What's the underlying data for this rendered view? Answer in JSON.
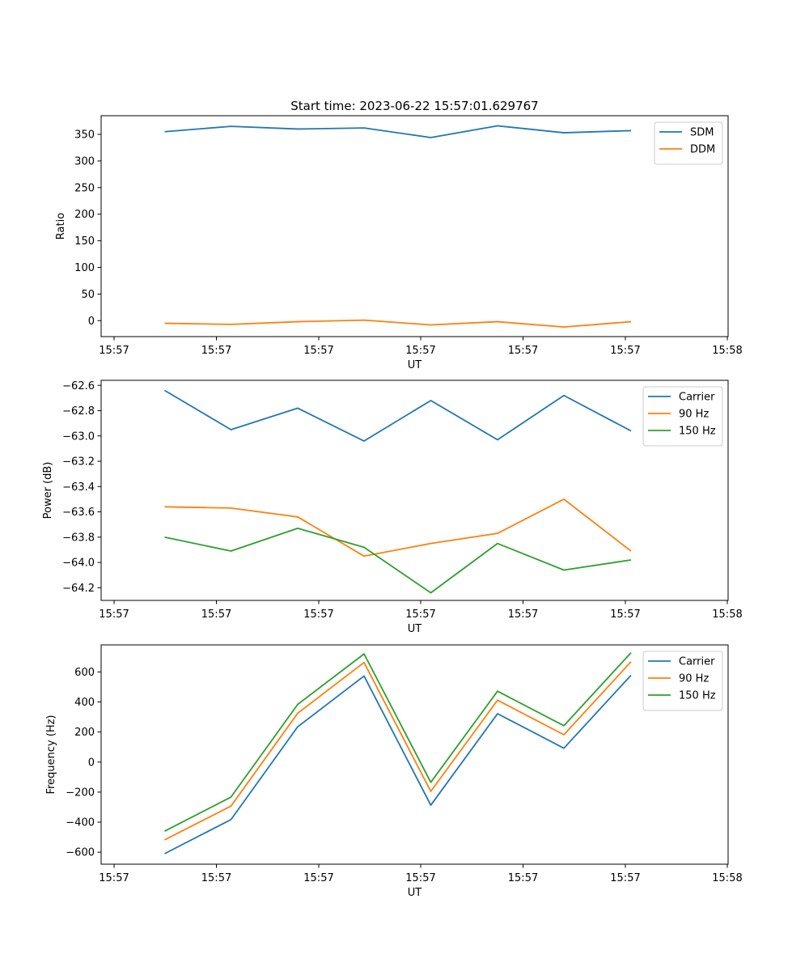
{
  "figure": {
    "title": "Start time: 2023-06-22 15:57:01.629767"
  },
  "chart_data": [
    {
      "type": "line",
      "title": "Start time: 2023-06-22 15:57:01.629767",
      "xlabel": "UT",
      "ylabel": "Ratio",
      "x_tick_labels": [
        "15:57",
        "15:57",
        "15:57",
        "15:57",
        "15:57",
        "15:57",
        "15:58"
      ],
      "x_points": 8,
      "ylim": [
        -30,
        385
      ],
      "y_ticks": [
        0,
        50,
        100,
        150,
        200,
        250,
        300,
        350
      ],
      "y_tick_labels": [
        "0",
        "50",
        "100",
        "150",
        "200",
        "250",
        "300",
        "350"
      ],
      "grid": false,
      "legend_position": "upper right",
      "series": [
        {
          "name": "SDM",
          "color": "#1f77b4",
          "values": [
            355,
            365,
            360,
            362,
            344,
            366,
            353,
            357
          ]
        },
        {
          "name": "DDM",
          "color": "#ff7f0e",
          "values": [
            -5,
            -7,
            -2,
            1,
            -8,
            -2,
            -12,
            -2
          ]
        }
      ]
    },
    {
      "type": "line",
      "xlabel": "UT",
      "ylabel": "Power (dB)",
      "x_tick_labels": [
        "15:57",
        "15:57",
        "15:57",
        "15:57",
        "15:57",
        "15:57",
        "15:58"
      ],
      "x_points": 8,
      "ylim": [
        -64.3,
        -62.56
      ],
      "y_ticks": [
        -64.2,
        -64.0,
        -63.8,
        -63.6,
        -63.4,
        -63.2,
        -63.0,
        -62.8,
        -62.6
      ],
      "y_tick_labels": [
        "−64.2",
        "−64.0",
        "−63.8",
        "−63.6",
        "−63.4",
        "−63.2",
        "−63.0",
        "−62.8",
        "−62.6"
      ],
      "grid": false,
      "legend_position": "upper right",
      "series": [
        {
          "name": "Carrier",
          "color": "#1f77b4",
          "values": [
            -62.64,
            -62.95,
            -62.78,
            -63.04,
            -62.72,
            -63.03,
            -62.68,
            -62.96
          ]
        },
        {
          "name": "90 Hz",
          "color": "#ff7f0e",
          "values": [
            -63.56,
            -63.57,
            -63.64,
            -63.95,
            -63.85,
            -63.77,
            -63.5,
            -63.91
          ]
        },
        {
          "name": "150 Hz",
          "color": "#2ca02c",
          "values": [
            -63.8,
            -63.91,
            -63.73,
            -63.88,
            -64.24,
            -63.85,
            -64.06,
            -63.98
          ]
        }
      ]
    },
    {
      "type": "line",
      "xlabel": "UT",
      "ylabel": "Frequency (Hz)",
      "x_tick_labels": [
        "15:57",
        "15:57",
        "15:57",
        "15:57",
        "15:57",
        "15:57",
        "15:58"
      ],
      "x_points": 8,
      "ylim": [
        -680,
        780
      ],
      "y_ticks": [
        -600,
        -400,
        -200,
        0,
        200,
        400,
        600
      ],
      "y_tick_labels": [
        "−600",
        "−400",
        "−200",
        "0",
        "200",
        "400",
        "600"
      ],
      "grid": false,
      "legend_position": "upper right",
      "series": [
        {
          "name": "Carrier",
          "color": "#1f77b4",
          "values": [
            -610,
            -383,
            235,
            573,
            -287,
            322,
            92,
            578
          ]
        },
        {
          "name": "90 Hz",
          "color": "#ff7f0e",
          "values": [
            -518,
            -293,
            325,
            663,
            -195,
            412,
            182,
            668
          ]
        },
        {
          "name": "150 Hz",
          "color": "#2ca02c",
          "values": [
            -460,
            -233,
            384,
            720,
            -135,
            472,
            242,
            728
          ]
        }
      ]
    }
  ]
}
